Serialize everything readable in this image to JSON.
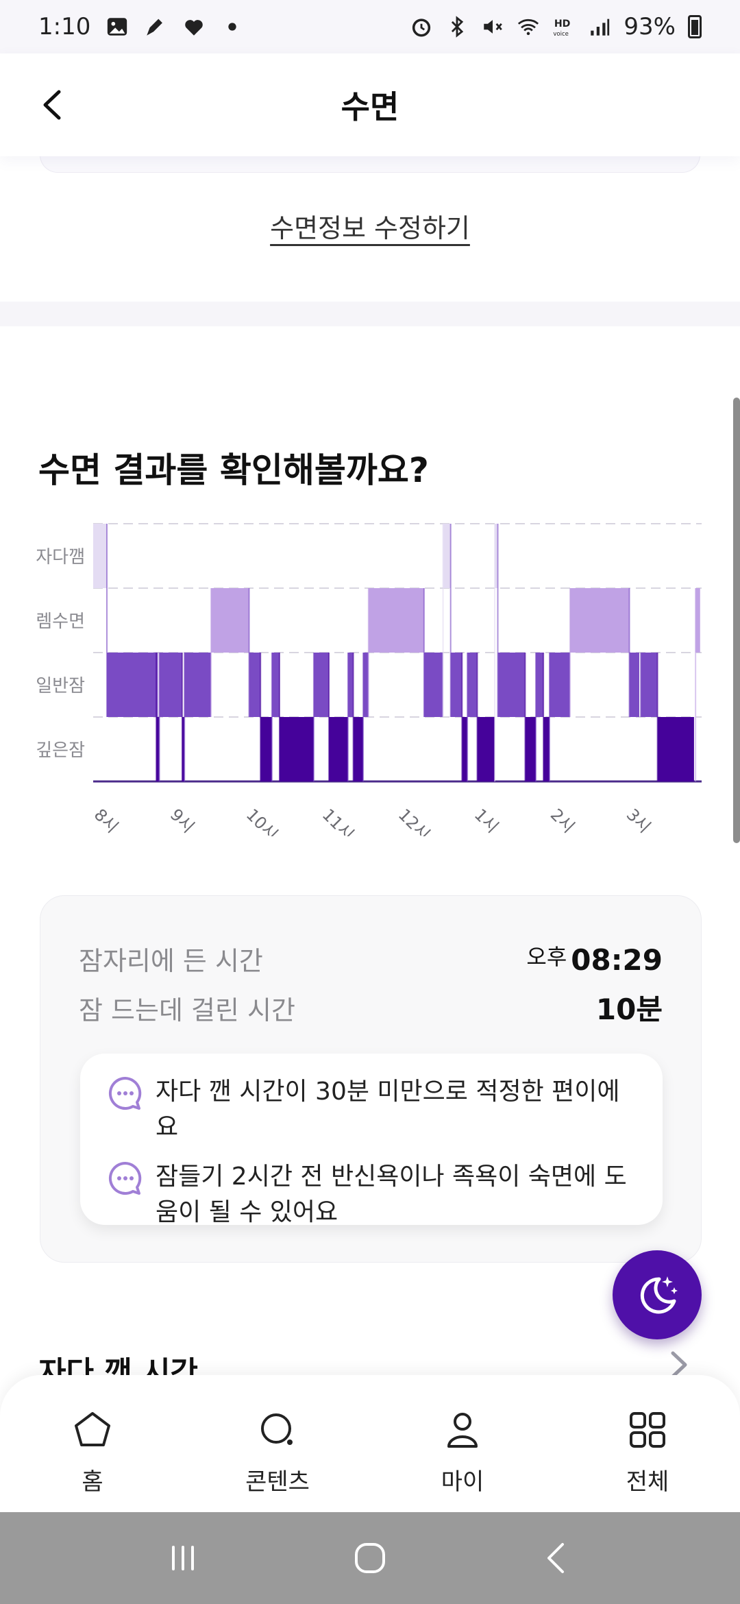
{
  "status_bar": {
    "time": "1:10",
    "battery": "93%",
    "icons": [
      "photo-icon",
      "pen-icon",
      "heart-icon",
      "dot-icon",
      "alarm-icon",
      "bluetooth-icon",
      "mute-icon",
      "wifi-icon",
      "hd-voice-icon",
      "signal-icon",
      "battery-icon"
    ]
  },
  "header": {
    "title": "수면",
    "back_icon": "chevron-left-icon"
  },
  "edit_link": "수면정보 수정하기",
  "section_title": "수면 결과를 확인해볼까요?",
  "chart_data": {
    "type": "heatmap",
    "title": "",
    "categories": [
      "자다깸",
      "렘수면",
      "일반잠",
      "깊은잠"
    ],
    "x_ticks": [
      "8시",
      "9시",
      "10시",
      "11시",
      "12시",
      "1시",
      "2시",
      "3시"
    ],
    "x_range_hours": [
      8.0,
      12.0
    ],
    "colors": {
      "자다깸": "#e4dcf3",
      "렘수면": "#c0a2e5",
      "일반잠": "#7a4bc4",
      "깊은잠": "#45029a"
    },
    "segments": [
      {
        "stage": "자다깸",
        "start": 8.0,
        "end": 8.18
      },
      {
        "stage": "일반잠",
        "start": 8.18,
        "end": 8.85
      },
      {
        "stage": "깊은잠",
        "start": 8.83,
        "end": 8.87
      },
      {
        "stage": "일반잠",
        "start": 8.87,
        "end": 9.17
      },
      {
        "stage": "깊은잠",
        "start": 9.17,
        "end": 9.2
      },
      {
        "stage": "일반잠",
        "start": 9.2,
        "end": 9.55
      },
      {
        "stage": "렘수면",
        "start": 9.55,
        "end": 10.05
      },
      {
        "stage": "일반잠",
        "start": 10.05,
        "end": 10.2
      },
      {
        "stage": "깊은잠",
        "start": 10.2,
        "end": 10.35
      },
      {
        "stage": "일반잠",
        "start": 10.35,
        "end": 10.45
      },
      {
        "stage": "깊은잠",
        "start": 10.45,
        "end": 10.9
      },
      {
        "stage": "일반잠",
        "start": 10.9,
        "end": 11.1
      },
      {
        "stage": "깊은잠",
        "start": 11.1,
        "end": 11.35
      },
      {
        "stage": "일반잠",
        "start": 11.35,
        "end": 11.42
      },
      {
        "stage": "깊은잠",
        "start": 11.42,
        "end": 11.55
      },
      {
        "stage": "일반잠",
        "start": 11.55,
        "end": 11.62
      },
      {
        "stage": "렘수면",
        "start": 11.62,
        "end": 12.35
      },
      {
        "stage": "일반잠",
        "start": 12.35,
        "end": 12.6
      },
      {
        "stage": "자다깸",
        "start": 12.6,
        "end": 12.7
      },
      {
        "stage": "일반잠",
        "start": 12.7,
        "end": 12.85
      },
      {
        "stage": "깊은잠",
        "start": 12.85,
        "end": 12.92
      },
      {
        "stage": "일반잠",
        "start": 12.92,
        "end": 13.05
      },
      {
        "stage": "깊은잠",
        "start": 13.05,
        "end": 13.28
      },
      {
        "stage": "자다깸",
        "start": 13.28,
        "end": 13.32
      },
      {
        "stage": "일반잠",
        "start": 13.32,
        "end": 13.68
      },
      {
        "stage": "깊은잠",
        "start": 13.68,
        "end": 13.82
      },
      {
        "stage": "일반잠",
        "start": 13.82,
        "end": 13.92
      },
      {
        "stage": "깊은잠",
        "start": 13.92,
        "end": 14.0
      },
      {
        "stage": "일반잠",
        "start": 14.0,
        "end": 14.27
      },
      {
        "stage": "렘수면",
        "start": 14.27,
        "end": 15.05
      },
      {
        "stage": "일반잠",
        "start": 15.05,
        "end": 15.18
      },
      {
        "stage": "일반잠",
        "start": 15.2,
        "end": 15.42
      },
      {
        "stage": "깊은잠",
        "start": 15.42,
        "end": 15.9
      },
      {
        "stage": "렘수면",
        "start": 15.92,
        "end": 15.98
      }
    ]
  },
  "info_card": {
    "bedtime_label": "잠자리에 든 시간",
    "bedtime_ampm": "오후",
    "bedtime_value": "08:29",
    "latency_label": "잠 드는데 걸린 시간",
    "latency_value": "10분",
    "tips": [
      "자다 깬 시간이 30분 미만으로 적정한 편이에요",
      "잠들기 2시간 전 반신욕이나 족욕이 숙면에 도움이 될 수 있어요"
    ]
  },
  "fab": {
    "icon": "moon-stars-icon"
  },
  "next_section": {
    "title": "자다 깬 시간"
  },
  "bottom_nav": [
    {
      "label": "홈",
      "icon": "home-icon"
    },
    {
      "label": "콘텐츠",
      "icon": "content-search-icon"
    },
    {
      "label": "마이",
      "icon": "person-icon"
    },
    {
      "label": "전체",
      "icon": "grid-icon"
    }
  ],
  "system_nav": [
    "recent-apps-icon",
    "home-circle-icon",
    "back-icon"
  ]
}
